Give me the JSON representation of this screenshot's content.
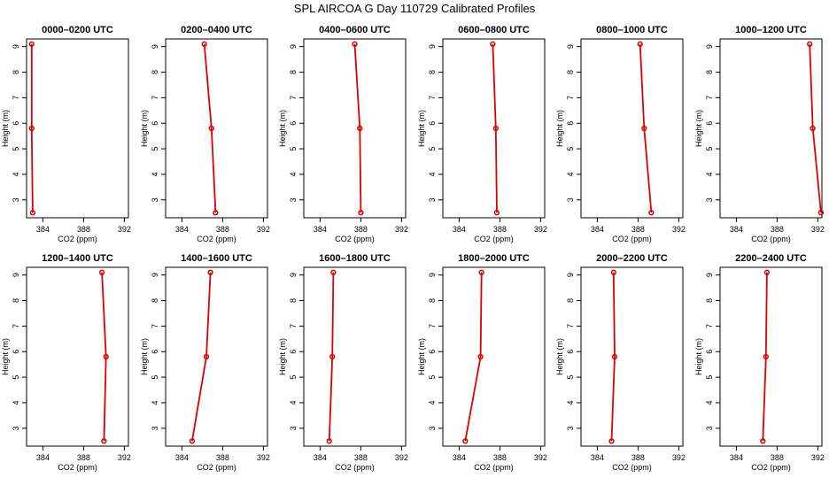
{
  "title": "SPL AIRCOA G  Day 110729  Calibrated Profiles",
  "chart_data": {
    "type": "line",
    "panels": [
      {
        "title": "0000–0200 UTC",
        "x": [
          382.9,
          382.9,
          383.0
        ],
        "y": [
          9.1,
          5.8,
          2.5
        ]
      },
      {
        "title": "0200–0400 UTC",
        "x": [
          386.2,
          386.9,
          387.3
        ],
        "y": [
          9.1,
          5.8,
          2.5
        ]
      },
      {
        "title": "0400–0600 UTC",
        "x": [
          387.4,
          387.9,
          388.0
        ],
        "y": [
          9.1,
          5.8,
          2.5
        ]
      },
      {
        "title": "0600–0800 UTC",
        "x": [
          387.3,
          387.6,
          387.7
        ],
        "y": [
          9.1,
          5.8,
          2.5
        ]
      },
      {
        "title": "0800–1000 UTC",
        "x": [
          388.2,
          388.6,
          389.3
        ],
        "y": [
          9.1,
          5.8,
          2.5
        ]
      },
      {
        "title": "1000–1200 UTC",
        "x": [
          391.2,
          391.5,
          392.3
        ],
        "y": [
          9.1,
          5.8,
          2.5
        ]
      },
      {
        "title": "1200–1400 UTC",
        "x": [
          389.8,
          390.2,
          390.0
        ],
        "y": [
          9.1,
          5.8,
          2.5
        ]
      },
      {
        "title": "1400–1600 UTC",
        "x": [
          386.8,
          386.4,
          385.0
        ],
        "y": [
          9.1,
          5.8,
          2.5
        ]
      },
      {
        "title": "1600–1800 UTC",
        "x": [
          385.3,
          385.2,
          384.9
        ],
        "y": [
          9.1,
          5.8,
          2.5
        ]
      },
      {
        "title": "1800–2000 UTC",
        "x": [
          386.2,
          386.1,
          384.6
        ],
        "y": [
          9.1,
          5.8,
          2.5
        ]
      },
      {
        "title": "2000–2200 UTC",
        "x": [
          385.6,
          385.7,
          385.4
        ],
        "y": [
          9.1,
          5.8,
          2.5
        ]
      },
      {
        "title": "2200–2400 UTC",
        "x": [
          387.0,
          386.9,
          386.6
        ],
        "y": [
          9.1,
          5.8,
          2.5
        ]
      }
    ],
    "xlabel": "CO2 (ppm)",
    "ylabel": "Height (m)",
    "xlim": [
      382.4,
      392.4
    ],
    "ylim": [
      2.3,
      9.3
    ],
    "xticks": [
      384,
      388,
      392
    ],
    "yticks": [
      3,
      4,
      5,
      6,
      7,
      8,
      9
    ],
    "grid": false,
    "line_color": "#dd0000",
    "marker": "open-circle"
  }
}
